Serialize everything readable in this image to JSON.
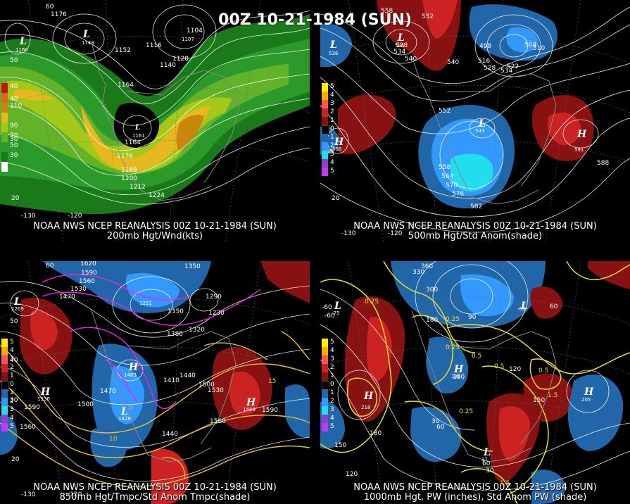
{
  "main_title": "00Z 10-21-1984 (SUN)",
  "panels": [
    {
      "caption_line1": "NOAA NWS NCEP REANALYSIS 00Z 10-21-1984 (SUN)",
      "caption_line2": "200mb Hgt/Wnd(kts)",
      "legend": [
        {
          "label": "40",
          "color": "#cc1111"
        },
        {
          "label": "",
          "color": "#dd6622"
        },
        {
          "label": "110",
          "color": "#c8860a"
        },
        {
          "label": "",
          "color": "#e8b820"
        },
        {
          "label": "90",
          "color": "#a4c81a"
        },
        {
          "label": "70",
          "color": "#62b22a"
        },
        {
          "label": "50",
          "color": "#2c9a2a"
        },
        {
          "label": "30",
          "color": "#1a7a1a"
        },
        {
          "label": "",
          "color": "#ffffff"
        }
      ],
      "contour_labels": [
        "1176",
        "1104",
        "1152",
        "1116",
        "1128",
        "1140",
        "1164",
        "1164",
        "1176",
        "1188",
        "1200",
        "1212",
        "1224"
      ],
      "highlow": [
        {
          "t": "L",
          "v": "1143"
        },
        {
          "t": "L",
          "v": "1160"
        },
        {
          "t": "L",
          "v": "1107"
        },
        {
          "t": "L",
          "v": "1161"
        }
      ],
      "lat_labels": [
        "60",
        "50",
        "40",
        "30",
        "20"
      ],
      "lon_labels": [
        "-130",
        "-120"
      ]
    },
    {
      "caption_line1": "NOAA NWS NCEP REANALYSIS 00Z 10-21-1984 (SUN)",
      "caption_line2": "500mb Hgt/Std Anom(shade)",
      "legend": [
        {
          "label": "5",
          "color": "#ffee00"
        },
        {
          "label": "4",
          "color": "#ffaa00"
        },
        {
          "label": "3",
          "color": "#ff5555"
        },
        {
          "label": "2",
          "color": "#cc2222"
        },
        {
          "label": "1",
          "color": "#881111"
        },
        {
          "label": "0",
          "color": "#000000"
        },
        {
          "label": "1",
          "color": "#2266aa"
        },
        {
          "label": "2",
          "color": "#3399ff"
        },
        {
          "label": "3",
          "color": "#22ddee"
        },
        {
          "label": "4",
          "color": "#8844cc"
        },
        {
          "label": "5",
          "color": "#cc33ff"
        }
      ],
      "contour_labels": [
        "558",
        "552",
        "528",
        "534",
        "540",
        "498",
        "504",
        "510",
        "516",
        "522",
        "528",
        "534",
        "540",
        "552",
        "558",
        "564",
        "570",
        "576",
        "582",
        "588",
        "588"
      ],
      "highlow": [
        {
          "t": "L",
          "v": "526"
        },
        {
          "t": "L",
          "v": "536"
        },
        {
          "t": "L",
          "v": "543"
        },
        {
          "t": "H",
          "v": "588"
        },
        {
          "t": "H",
          "v": "591"
        }
      ],
      "lat_labels": [
        "20"
      ],
      "lon_labels": [
        "-130",
        "-120"
      ]
    },
    {
      "caption_line1": "NOAA NWS NCEP REANALYSIS 00Z 10-21-1984 (SUN)",
      "caption_line2": "850mb Hgt/Tmpc/Std Anom Tmpc(shade)",
      "legend": [
        {
          "label": "5",
          "color": "#ffee00"
        },
        {
          "label": "4",
          "color": "#ffaa00"
        },
        {
          "label": "3",
          "color": "#ff5555"
        },
        {
          "label": "2",
          "color": "#cc2222"
        },
        {
          "label": "1",
          "color": "#881111"
        },
        {
          "label": "0",
          "color": "#000000"
        },
        {
          "label": "1",
          "color": "#2266aa"
        },
        {
          "label": "2",
          "color": "#3399ff"
        },
        {
          "label": "3",
          "color": "#22ddee"
        },
        {
          "label": "4",
          "color": "#8844cc"
        },
        {
          "label": "5",
          "color": "#cc33ff"
        }
      ],
      "contour_labels": [
        "1620",
        "1590",
        "1560",
        "1530",
        "1470",
        "1350",
        "1290",
        "1230",
        "1350",
        "1380",
        "1320",
        "1410",
        "1440",
        "1470",
        "1500",
        "1500",
        "1530",
        "1560",
        "1590",
        "1560",
        "1590",
        "1440",
        "15",
        "10",
        "5"
      ],
      "highlow": [
        {
          "t": "L",
          "v": "1269"
        },
        {
          "t": "L",
          "v": "1251"
        },
        {
          "t": "H",
          "v": "1483"
        },
        {
          "t": "H",
          "v": "1536"
        },
        {
          "t": "H",
          "v": "1599"
        },
        {
          "t": "L",
          "v": "1428"
        }
      ],
      "lat_labels": [
        "60",
        "50",
        "40",
        "30",
        "20"
      ],
      "lon_labels": [
        "-130",
        "-120"
      ]
    },
    {
      "caption_line1": "NOAA NWS NCEP REANALYSIS 00Z 10-21-1984 (SUN)",
      "caption_line2": "1000mb Hgt, PW (inches), Std Anom PW (shade)",
      "legend": [
        {
          "label": "5",
          "color": "#ffee00"
        },
        {
          "label": "4",
          "color": "#ffaa00"
        },
        {
          "label": "3",
          "color": "#ff5555"
        },
        {
          "label": "2",
          "color": "#cc2222"
        },
        {
          "label": "1",
          "color": "#881111"
        },
        {
          "label": "0",
          "color": "#000000"
        },
        {
          "label": "1",
          "color": "#2266aa"
        },
        {
          "label": "2",
          "color": "#3399ff"
        },
        {
          "label": "3",
          "color": "#22ddee"
        },
        {
          "label": "4",
          "color": "#8844cc"
        },
        {
          "label": "5",
          "color": "#cc33ff"
        }
      ],
      "contour_labels": [
        "360",
        "330",
        "300",
        "180",
        "90",
        "60",
        "-60",
        "0.25",
        "0.25",
        "0.25",
        "0.5",
        "0.5",
        "0.5",
        "1.5",
        "0.25",
        "180",
        "120",
        "150",
        "30",
        "60",
        "1.5",
        "30",
        "60",
        "120",
        "150",
        "180"
      ],
      "highlow": [
        {
          "t": "L",
          "v": "-75"
        },
        {
          "t": "L",
          "v": "-60"
        },
        {
          "t": "H",
          "v": "186"
        },
        {
          "t": "H",
          "v": "218"
        },
        {
          "t": "H",
          "v": "205"
        },
        {
          "t": "L",
          "v": "37"
        }
      ],
      "lat_labels": [
        "-60"
      ],
      "lon_labels": []
    }
  ]
}
